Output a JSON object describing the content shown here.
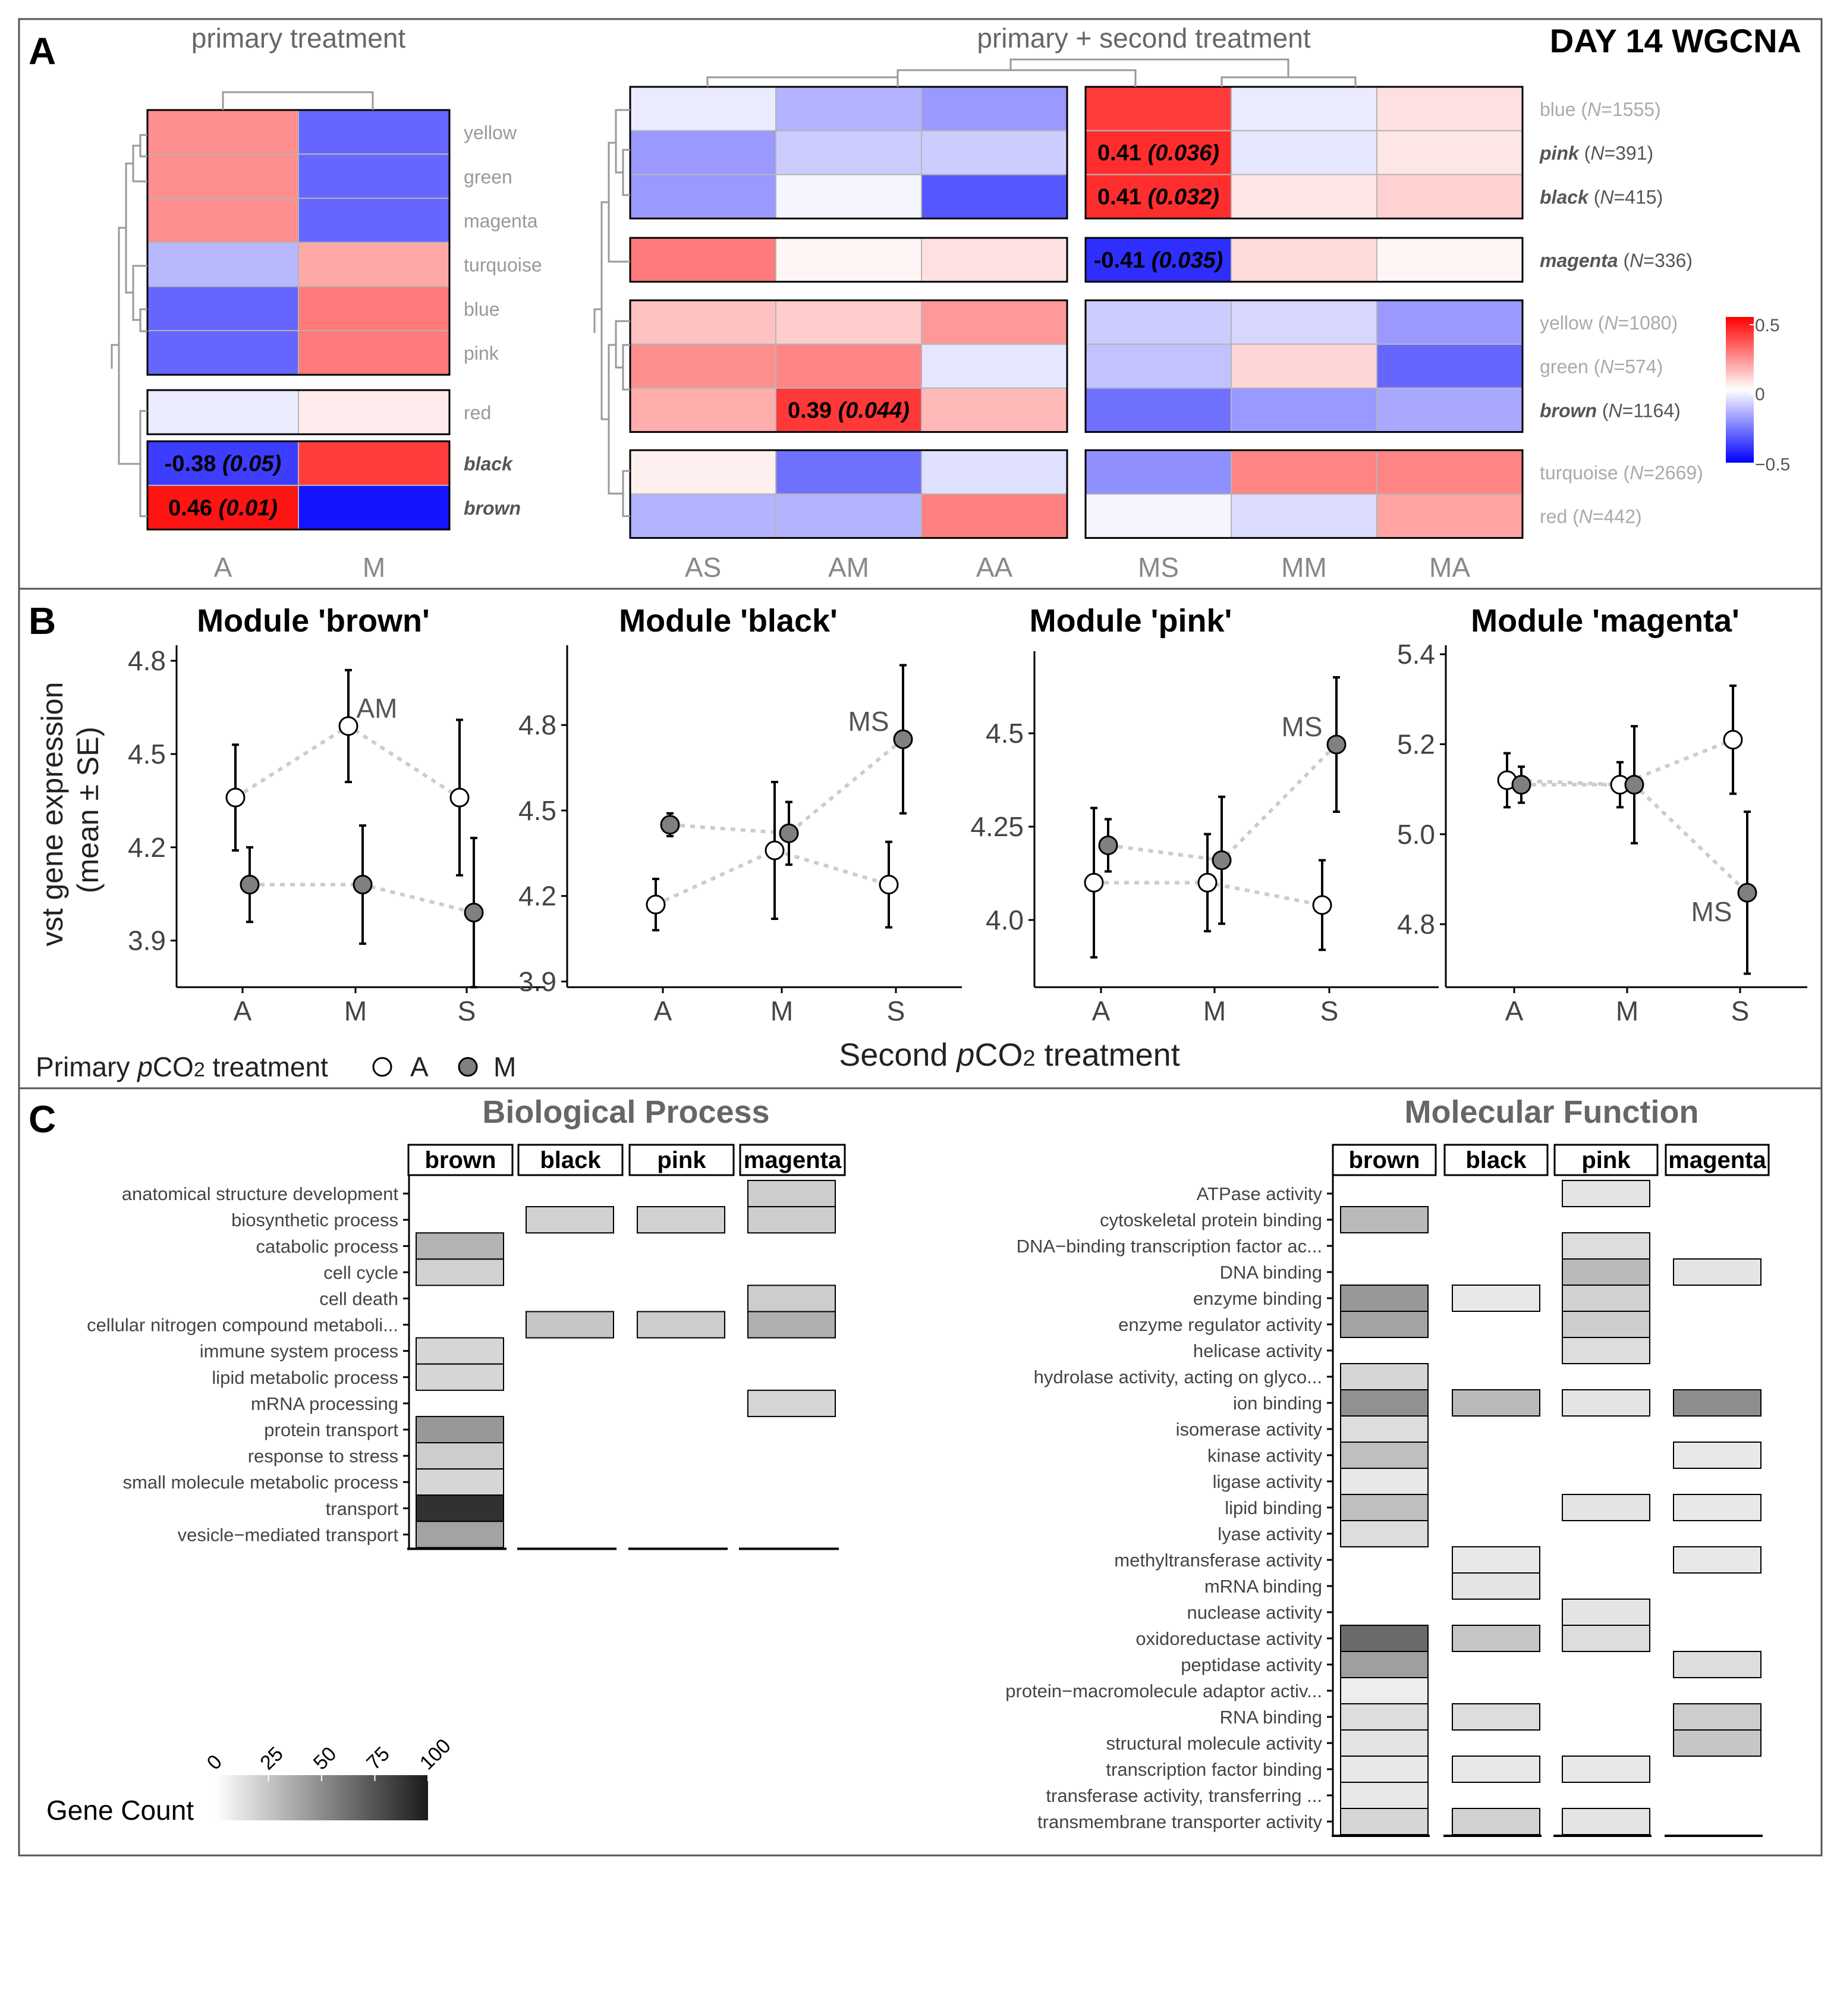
{
  "panel_letters": [
    "A",
    "B",
    "C"
  ],
  "panelA": {
    "title_left": "primary treatment",
    "title_mid": "primary + second treatment",
    "title_right": "DAY 14 WGCNA",
    "left_cols": [
      "A",
      "M"
    ],
    "left_rows": [
      {
        "label": "yellow",
        "bold": false,
        "values": [
          0.22,
          -0.3
        ]
      },
      {
        "label": "green",
        "bold": false,
        "values": [
          0.22,
          -0.3
        ]
      },
      {
        "label": "magenta",
        "bold": false,
        "values": [
          0.22,
          -0.3
        ]
      },
      {
        "label": "turquoise",
        "bold": false,
        "values": [
          -0.14,
          0.17
        ]
      },
      {
        "label": "blue",
        "bold": false,
        "values": [
          -0.3,
          0.26
        ]
      },
      {
        "label": "pink",
        "bold": false,
        "values": [
          -0.3,
          0.26
        ]
      },
      {
        "label": "red",
        "bold": false,
        "values": [
          -0.04,
          0.04
        ]
      },
      {
        "label": "black",
        "bold": true,
        "values": [
          -0.38,
          0.38
        ],
        "annot": [
          "-0.38 (0.05)",
          ""
        ]
      },
      {
        "label": "brown",
        "bold": true,
        "values": [
          0.46,
          -0.46
        ],
        "annot": [
          "0.46 (0.01)",
          ""
        ]
      }
    ],
    "left_groups": [
      [
        0,
        1,
        2,
        3,
        4,
        5
      ],
      [
        6
      ],
      [
        7,
        8
      ]
    ],
    "mid_cols_A": [
      "AS",
      "AM",
      "AA"
    ],
    "mid_cols_M": [
      "MS",
      "MM",
      "MA"
    ],
    "mid_rows": [
      {
        "label": "blue",
        "n": "1555",
        "bold": false,
        "values": [
          -0.04,
          -0.15,
          -0.2,
          0.38,
          -0.04,
          0.06
        ]
      },
      {
        "label": "pink",
        "n": "391",
        "bold": true,
        "values": [
          -0.2,
          -0.1,
          -0.1,
          0.41,
          -0.05,
          0.05
        ],
        "annot": {
          "3": "0.41 (0.036)"
        }
      },
      {
        "label": "black",
        "n": "415",
        "bold": true,
        "values": [
          -0.2,
          -0.02,
          -0.33,
          0.41,
          0.05,
          0.09
        ],
        "annot": {
          "3": "0.41 (0.032)"
        }
      },
      {
        "label": "magenta",
        "n": "336",
        "bold": true,
        "values": [
          0.26,
          0.02,
          0.06,
          -0.41,
          0.07,
          0.02
        ],
        "annot": {
          "3": "-0.41 (0.035)"
        }
      },
      {
        "label": "yellow",
        "n": "1080",
        "bold": false,
        "values": [
          0.12,
          0.1,
          0.2,
          -0.1,
          -0.08,
          -0.2
        ]
      },
      {
        "label": "green",
        "n": "574",
        "bold": false,
        "values": [
          0.22,
          0.24,
          -0.05,
          -0.12,
          0.08,
          -0.3
        ]
      },
      {
        "label": "brown",
        "n": "1164",
        "bold": true,
        "values": [
          0.16,
          0.39,
          0.14,
          -0.28,
          -0.2,
          -0.17
        ],
        "annot": {
          "1": "0.39 (0.044)"
        }
      },
      {
        "label": "turquoise",
        "n": "2669",
        "bold": false,
        "values": [
          0.03,
          -0.28,
          -0.06,
          -0.22,
          0.24,
          0.24
        ]
      },
      {
        "label": "red",
        "n": "442",
        "bold": false,
        "values": [
          -0.15,
          -0.15,
          0.25,
          -0.02,
          -0.07,
          0.18
        ]
      }
    ],
    "mid_groups": [
      [
        0,
        1,
        2
      ],
      [
        3
      ],
      [
        4,
        5,
        6
      ],
      [
        7,
        8
      ]
    ],
    "legend_ticks": [
      "0.5",
      "0",
      "−0.5"
    ]
  },
  "panelB": {
    "ylabel_line1": "vst gene expression",
    "ylabel_line2": "(mean ± SE)",
    "xlabel_prefix": "Second ",
    "xlabel_italic": "p",
    "xlabel_co": "CO",
    "xlabel_sub": "2",
    "xlabel_suffix": " treatment",
    "legend_prefix": "Primary ",
    "legend_italic": "p",
    "legend_co": "CO",
    "legend_sub": "2",
    "legend_suffix": " treatment",
    "legend_A": "A",
    "legend_M": "M",
    "x_categories": [
      "A",
      "M",
      "S"
    ]
  },
  "panelC": {
    "bp_title": "Biological Process",
    "mf_title": "Molecular Function",
    "modules": [
      "brown",
      "black",
      "pink",
      "magenta"
    ],
    "bp_terms": [
      "anatomical structure development",
      "biosynthetic process",
      "catabolic process",
      "cell cycle",
      "cell death",
      "cellular nitrogen compound metaboli...",
      "immune system process",
      "lipid metabolic process",
      "mRNA processing",
      "protein transport",
      "response to stress",
      "small molecule metabolic process",
      "transport",
      "vesicle−mediated transport"
    ],
    "bp_counts": [
      [
        null,
        null,
        null,
        22
      ],
      [
        null,
        20,
        20,
        22
      ],
      [
        33,
        null,
        null,
        null
      ],
      [
        20,
        null,
        null,
        null
      ],
      [
        null,
        null,
        null,
        22
      ],
      [
        null,
        25,
        22,
        35
      ],
      [
        18,
        null,
        null,
        null
      ],
      [
        18,
        null,
        null,
        null
      ],
      [
        null,
        null,
        null,
        18
      ],
      [
        45,
        null,
        null,
        null
      ],
      [
        22,
        null,
        null,
        null
      ],
      [
        18,
        null,
        null,
        null
      ],
      [
        90,
        null,
        null,
        null
      ],
      [
        40,
        null,
        null,
        null
      ]
    ],
    "mf_terms": [
      "ATPase activity",
      "cytoskeletal protein binding",
      "DNA−binding transcription factor ac...",
      "DNA binding",
      "enzyme binding",
      "enzyme regulator activity",
      "helicase activity",
      "hydrolase activity, acting on glyco...",
      "ion binding",
      "isomerase activity",
      "kinase activity",
      "ligase activity",
      "lipid binding",
      "lyase activity",
      "methyltransferase activity",
      "mRNA binding",
      "nuclease activity",
      "oxidoreductase activity",
      "peptidase activity",
      "protein−macromolecule adaptor activ...",
      "RNA binding",
      "structural molecule activity",
      "transcription factor binding",
      "transferase activity, transferring ...",
      "transmembrane transporter activity"
    ],
    "mf_counts": [
      [
        null,
        null,
        12,
        null
      ],
      [
        30,
        null,
        null,
        null
      ],
      [
        null,
        null,
        15,
        null
      ],
      [
        null,
        null,
        30,
        12
      ],
      [
        45,
        10,
        20,
        null
      ],
      [
        40,
        null,
        22,
        null
      ],
      [
        null,
        null,
        15,
        null
      ],
      [
        18,
        null,
        null,
        null
      ],
      [
        48,
        30,
        12,
        50
      ],
      [
        15,
        null,
        null,
        null
      ],
      [
        28,
        null,
        null,
        10
      ],
      [
        10,
        null,
        null,
        null
      ],
      [
        28,
        null,
        12,
        10
      ],
      [
        15,
        null,
        null,
        null
      ],
      [
        null,
        10,
        null,
        10
      ],
      [
        null,
        12,
        null,
        null
      ],
      [
        null,
        null,
        12,
        null
      ],
      [
        65,
        25,
        15,
        null
      ],
      [
        42,
        null,
        null,
        15
      ],
      [
        8,
        null,
        null,
        null
      ],
      [
        15,
        15,
        null,
        22
      ],
      [
        12,
        null,
        null,
        25
      ],
      [
        10,
        10,
        10,
        null
      ],
      [
        10,
        null,
        null,
        null
      ],
      [
        18,
        20,
        12,
        null
      ]
    ],
    "legend_title": "Gene Count",
    "legend_ticks": [
      "0",
      "25",
      "50",
      "75",
      "100"
    ]
  },
  "chart_data": [
    {
      "type": "line",
      "title": "Module 'brown'",
      "categories": [
        "A",
        "M",
        "S"
      ],
      "ylim": [
        3.75,
        4.85
      ],
      "yticks": [
        "3.9",
        "4.2",
        "4.5",
        "4.8"
      ],
      "ytick_values": [
        3.9,
        4.2,
        4.5,
        4.8
      ],
      "series": [
        {
          "name": "A",
          "values": [
            4.36,
            4.59,
            4.36
          ],
          "se": [
            0.17,
            0.18,
            0.25
          ]
        },
        {
          "name": "M",
          "values": [
            4.08,
            4.08,
            3.99
          ],
          "se": [
            0.12,
            0.19,
            0.24
          ]
        }
      ],
      "annotation": {
        "text": "AM",
        "series": 0,
        "index": 1
      }
    },
    {
      "type": "line",
      "title": "Module 'black'",
      "categories": [
        "A",
        "M",
        "S"
      ],
      "ylim": [
        3.88,
        5.08
      ],
      "yticks": [
        "3.9",
        "4.2",
        "4.5",
        "4.8"
      ],
      "ytick_values": [
        3.9,
        4.2,
        4.5,
        4.8
      ],
      "series": [
        {
          "name": "A",
          "values": [
            4.17,
            4.36,
            4.24
          ],
          "se": [
            0.09,
            0.24,
            0.15
          ]
        },
        {
          "name": "M",
          "values": [
            4.45,
            4.42,
            4.75
          ],
          "se": [
            0.04,
            0.11,
            0.26
          ]
        }
      ],
      "annotation": {
        "text": "MS",
        "series": 1,
        "index": 2
      }
    },
    {
      "type": "line",
      "title": "Module 'pink'",
      "categories": [
        "A",
        "M",
        "S"
      ],
      "ylim": [
        3.82,
        4.72
      ],
      "yticks": [
        "4.0",
        "4.25",
        "4.5"
      ],
      "ytick_values": [
        4.0,
        4.25,
        4.5
      ],
      "series": [
        {
          "name": "A",
          "values": [
            4.1,
            4.1,
            4.04
          ],
          "se": [
            0.2,
            0.13,
            0.12
          ]
        },
        {
          "name": "M",
          "values": [
            4.2,
            4.16,
            4.47
          ],
          "se": [
            0.07,
            0.17,
            0.18
          ]
        }
      ],
      "annotation": {
        "text": "MS",
        "series": 1,
        "index": 2
      }
    },
    {
      "type": "line",
      "title": "Module 'magenta'",
      "categories": [
        "A",
        "M",
        "S"
      ],
      "ylim": [
        4.66,
        5.42
      ],
      "yticks": [
        "4.8",
        "5.0",
        "5.2",
        "5.4"
      ],
      "ytick_values": [
        4.8,
        5.0,
        5.2,
        5.4
      ],
      "series": [
        {
          "name": "A",
          "values": [
            5.12,
            5.11,
            5.21
          ],
          "se": [
            0.06,
            0.05,
            0.12
          ]
        },
        {
          "name": "M",
          "values": [
            5.11,
            5.11,
            4.87
          ],
          "se": [
            0.04,
            0.13,
            0.18
          ]
        }
      ],
      "annotation": {
        "text": "MS",
        "series": 1,
        "index": 2
      }
    }
  ],
  "colors": {
    "frame": "#555555",
    "heat_pos": "#FF0000",
    "heat_neg": "#0000FF",
    "gene_dark": "#1a1a1a",
    "dash": "#cccccc",
    "filled_point": "#808080"
  }
}
